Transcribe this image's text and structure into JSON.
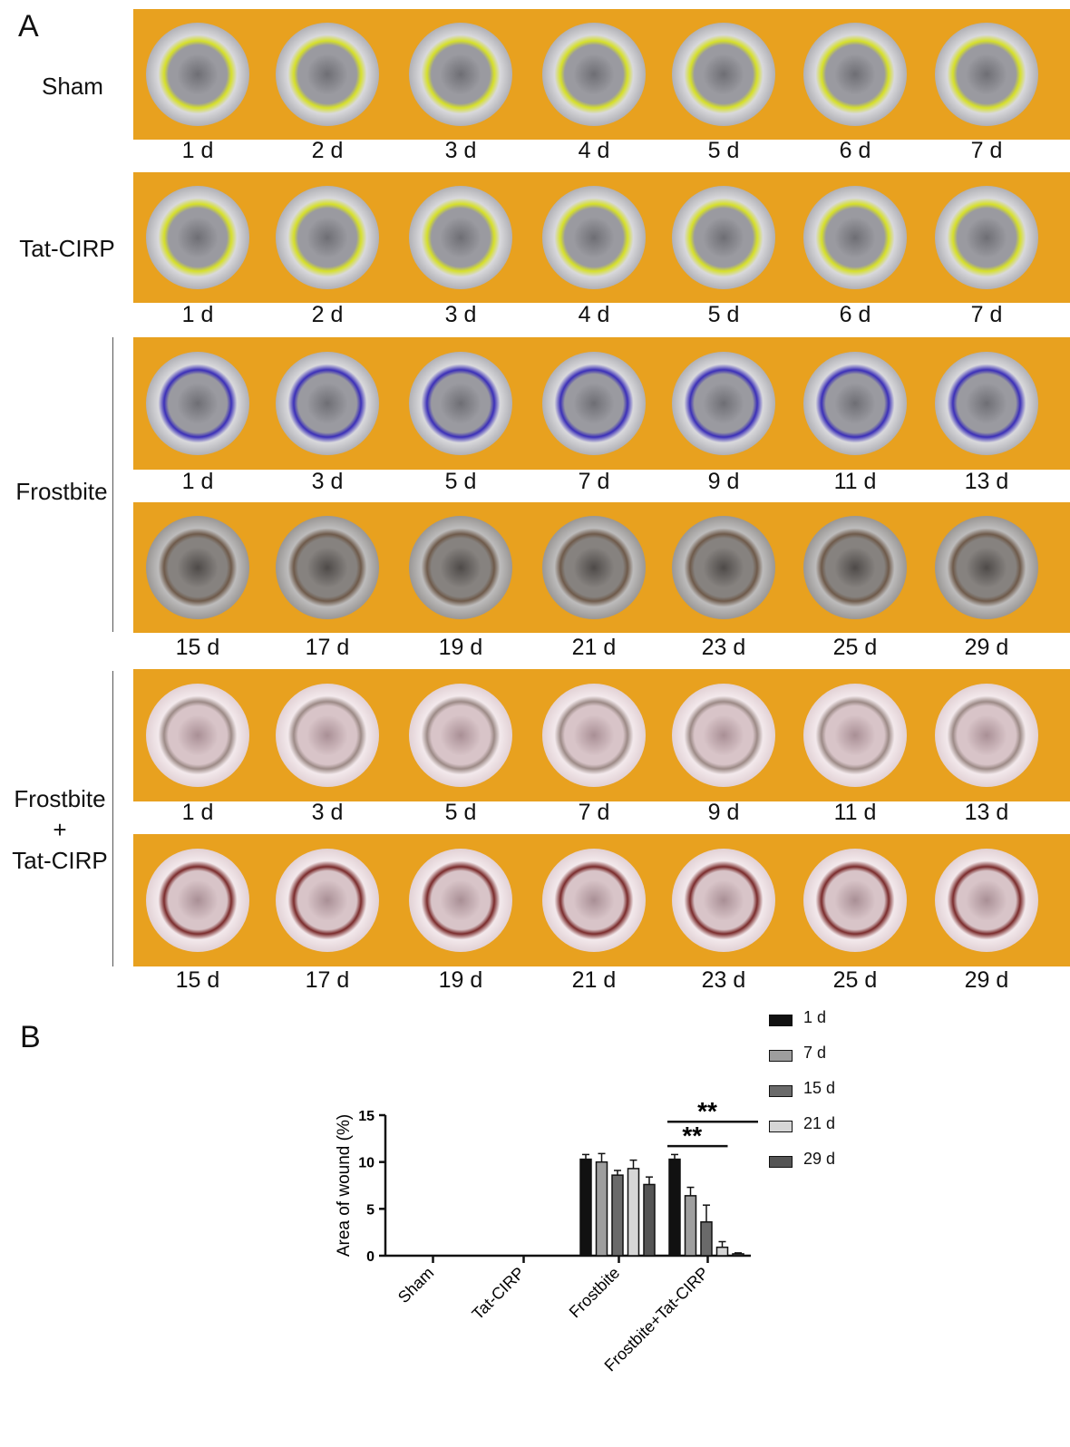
{
  "figure": {
    "panel_a_label": "A",
    "panel_b_label": "B",
    "strip_color": "#E8A11F"
  },
  "panel_a": {
    "groups": [
      {
        "label": "Sham"
      },
      {
        "label": "Tat-CIRP"
      },
      {
        "label": "Frostbite"
      },
      {
        "label_lines": [
          "Frostbite",
          "+",
          "Tat-CIRP"
        ]
      }
    ],
    "rows": [
      {
        "group": "Sham",
        "days": [
          "1 d",
          "2 d",
          "3 d",
          "4 d",
          "5 d",
          "6 d",
          "7 d"
        ],
        "marker": "#D6E02A",
        "skin": "gray"
      },
      {
        "group": "Tat-CIRP",
        "days": [
          "1 d",
          "2 d",
          "3 d",
          "4 d",
          "5 d",
          "6 d",
          "7 d"
        ],
        "marker": "#D6E02A",
        "skin": "gray"
      },
      {
        "group": "Frostbite",
        "days": [
          "1 d",
          "3 d",
          "5 d",
          "7 d",
          "9 d",
          "11 d",
          "13 d"
        ],
        "marker": "#3B2FB8",
        "skin": "gray"
      },
      {
        "group": "Frostbite",
        "days": [
          "15 d",
          "17 d",
          "19 d",
          "21 d",
          "23 d",
          "25 d",
          "29 d"
        ],
        "marker": "#6E5A4A",
        "skin": "dark"
      },
      {
        "group": "Frostbite+Tat-CIRP",
        "days": [
          "1 d",
          "3 d",
          "5 d",
          "7 d",
          "9 d",
          "11 d",
          "13 d"
        ],
        "marker": "#9C8A86",
        "skin": "pink"
      },
      {
        "group": "Frostbite+Tat-CIRP",
        "days": [
          "15 d",
          "17 d",
          "19 d",
          "21 d",
          "23 d",
          "25 d",
          "29 d"
        ],
        "marker": "#7A2B2B",
        "skin": "pink"
      }
    ]
  },
  "chart_data": {
    "type": "bar",
    "title": "",
    "xlabel": "",
    "ylabel": "Area of wound (%)",
    "ylim": [
      0,
      15
    ],
    "yticks": [
      "0",
      "5",
      "10",
      "15"
    ],
    "categories": [
      "Sham",
      "Tat-CIRP",
      "Frostbite",
      "Frostbite+Tat-CIRP"
    ],
    "series": [
      {
        "name": "1 d",
        "values": [
          0,
          0,
          10.3,
          10.3
        ],
        "errors": [
          0,
          0,
          0.5,
          0.5
        ],
        "color": "#111111"
      },
      {
        "name": "7 d",
        "values": [
          0,
          0,
          10.0,
          6.4
        ],
        "errors": [
          0,
          0,
          0.9,
          0.9
        ],
        "color": "#9e9e9e"
      },
      {
        "name": "15 d",
        "values": [
          0,
          0,
          8.6,
          3.6
        ],
        "errors": [
          0,
          0,
          0.5,
          1.8
        ],
        "color": "#6a6a6a"
      },
      {
        "name": "21 d",
        "values": [
          0,
          0,
          9.3,
          0.9
        ],
        "errors": [
          0,
          0,
          0.9,
          0.6
        ],
        "color": "#d6d6d6"
      },
      {
        "name": "29 d",
        "values": [
          0,
          0,
          7.6,
          0.2
        ],
        "errors": [
          0,
          0,
          0.8,
          0.1
        ],
        "color": "#555555"
      }
    ],
    "significance": [
      {
        "label": "**",
        "from_series": "1 d",
        "to_series": "29 d",
        "category": "Frostbite+Tat-CIRP"
      },
      {
        "label": "**",
        "from_series": "1 d",
        "to_series": "21 d",
        "category": "Frostbite+Tat-CIRP"
      }
    ],
    "legend_placement": "top-right",
    "grid": false
  }
}
